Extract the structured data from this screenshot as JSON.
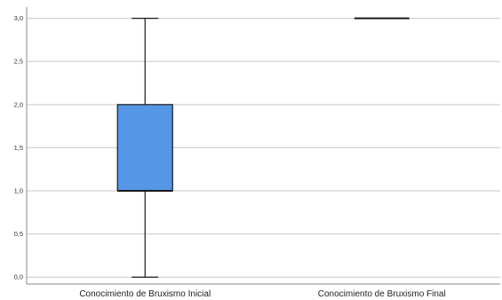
{
  "chart_data": {
    "type": "boxplot",
    "categories": [
      "Conocimiento de Bruxismo Inicial",
      "Conocimiento de Bruxismo Final"
    ],
    "boxes": [
      {
        "category": "Conocimiento de Bruxismo Inicial",
        "min": 0.0,
        "q1": 1.0,
        "median": 1.0,
        "q3": 2.0,
        "max": 3.0
      },
      {
        "category": "Conocimiento de Bruxismo Final",
        "min": 3.0,
        "q1": 3.0,
        "median": 3.0,
        "q3": 3.0,
        "max": 3.0
      }
    ],
    "yticks": [
      "0,0",
      "0,5",
      "1,0",
      "1,5",
      "2,0",
      "2,5",
      "3,0"
    ],
    "ytick_values": [
      0,
      0.5,
      1.0,
      1.5,
      2.0,
      2.5,
      3.0
    ],
    "ylim": [
      -0.08,
      3.13
    ],
    "grid": true,
    "colors": {
      "box_fill": "#5596E6",
      "box_stroke": "#1a1a1a",
      "grid": "#c8c8c8",
      "axis": "#888888"
    }
  }
}
